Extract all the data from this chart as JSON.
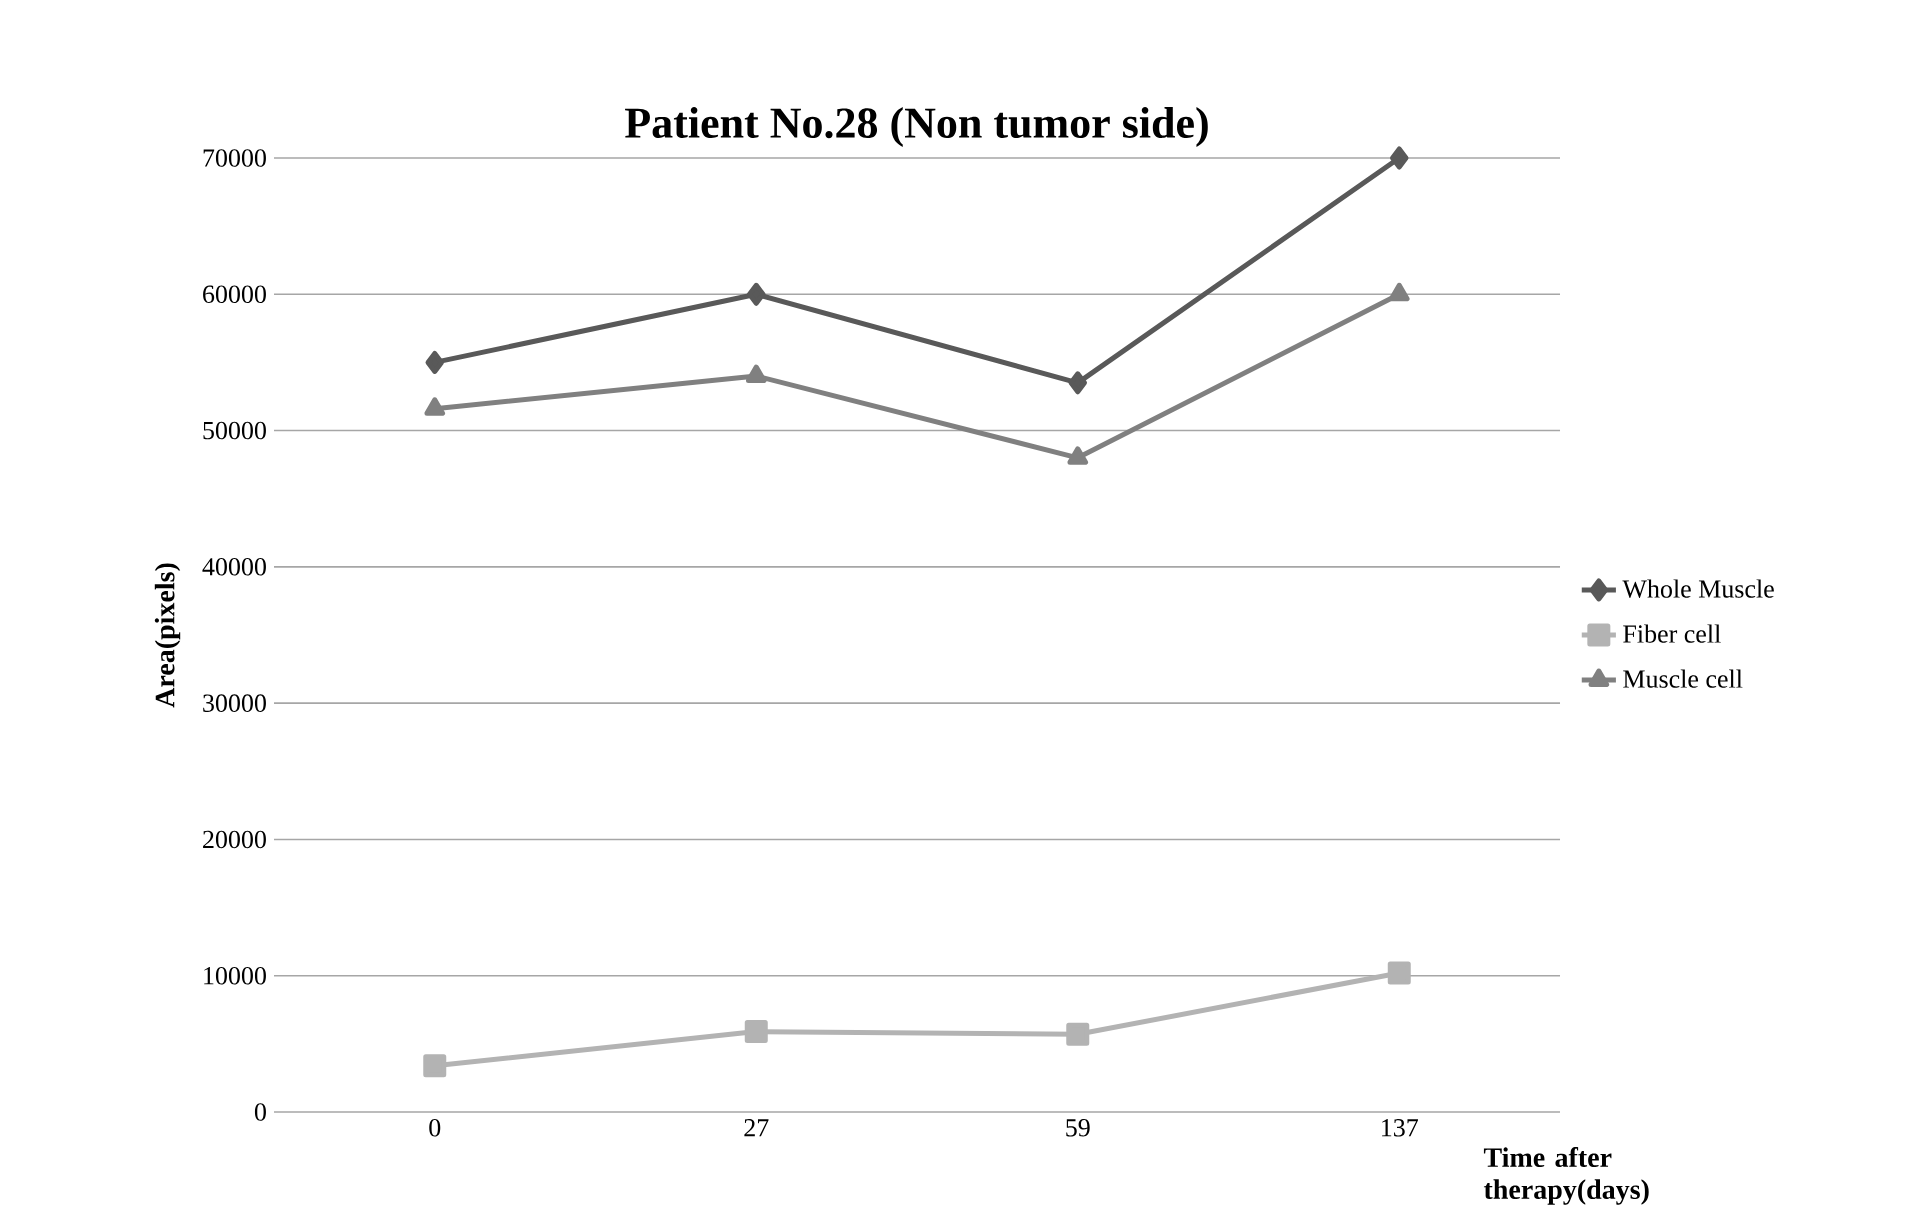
{
  "chart_data": {
    "type": "line",
    "title": "Patient No.28 (Non tumor side)",
    "xlabel": "Time after therapy(days)",
    "ylabel": "Area(pixels)",
    "categories": [
      "0",
      "27",
      "59",
      "137"
    ],
    "series": [
      {
        "name": "Whole Muscle",
        "color": "#595959",
        "marker": "diamond",
        "values": [
          55000,
          60000,
          53500,
          70000
        ]
      },
      {
        "name": "Fiber cell",
        "color": "#b3b3b3",
        "marker": "square",
        "values": [
          3400,
          5900,
          5700,
          10200
        ]
      },
      {
        "name": "Muscle cell",
        "color": "#808080",
        "marker": "triangle",
        "values": [
          51600,
          54000,
          48000,
          60000
        ]
      }
    ],
    "ylim": [
      0,
      70000
    ],
    "yticks": [
      0,
      10000,
      20000,
      30000,
      40000,
      50000,
      60000,
      70000
    ],
    "grid": "y",
    "legend": "right",
    "line_style": "solid"
  }
}
